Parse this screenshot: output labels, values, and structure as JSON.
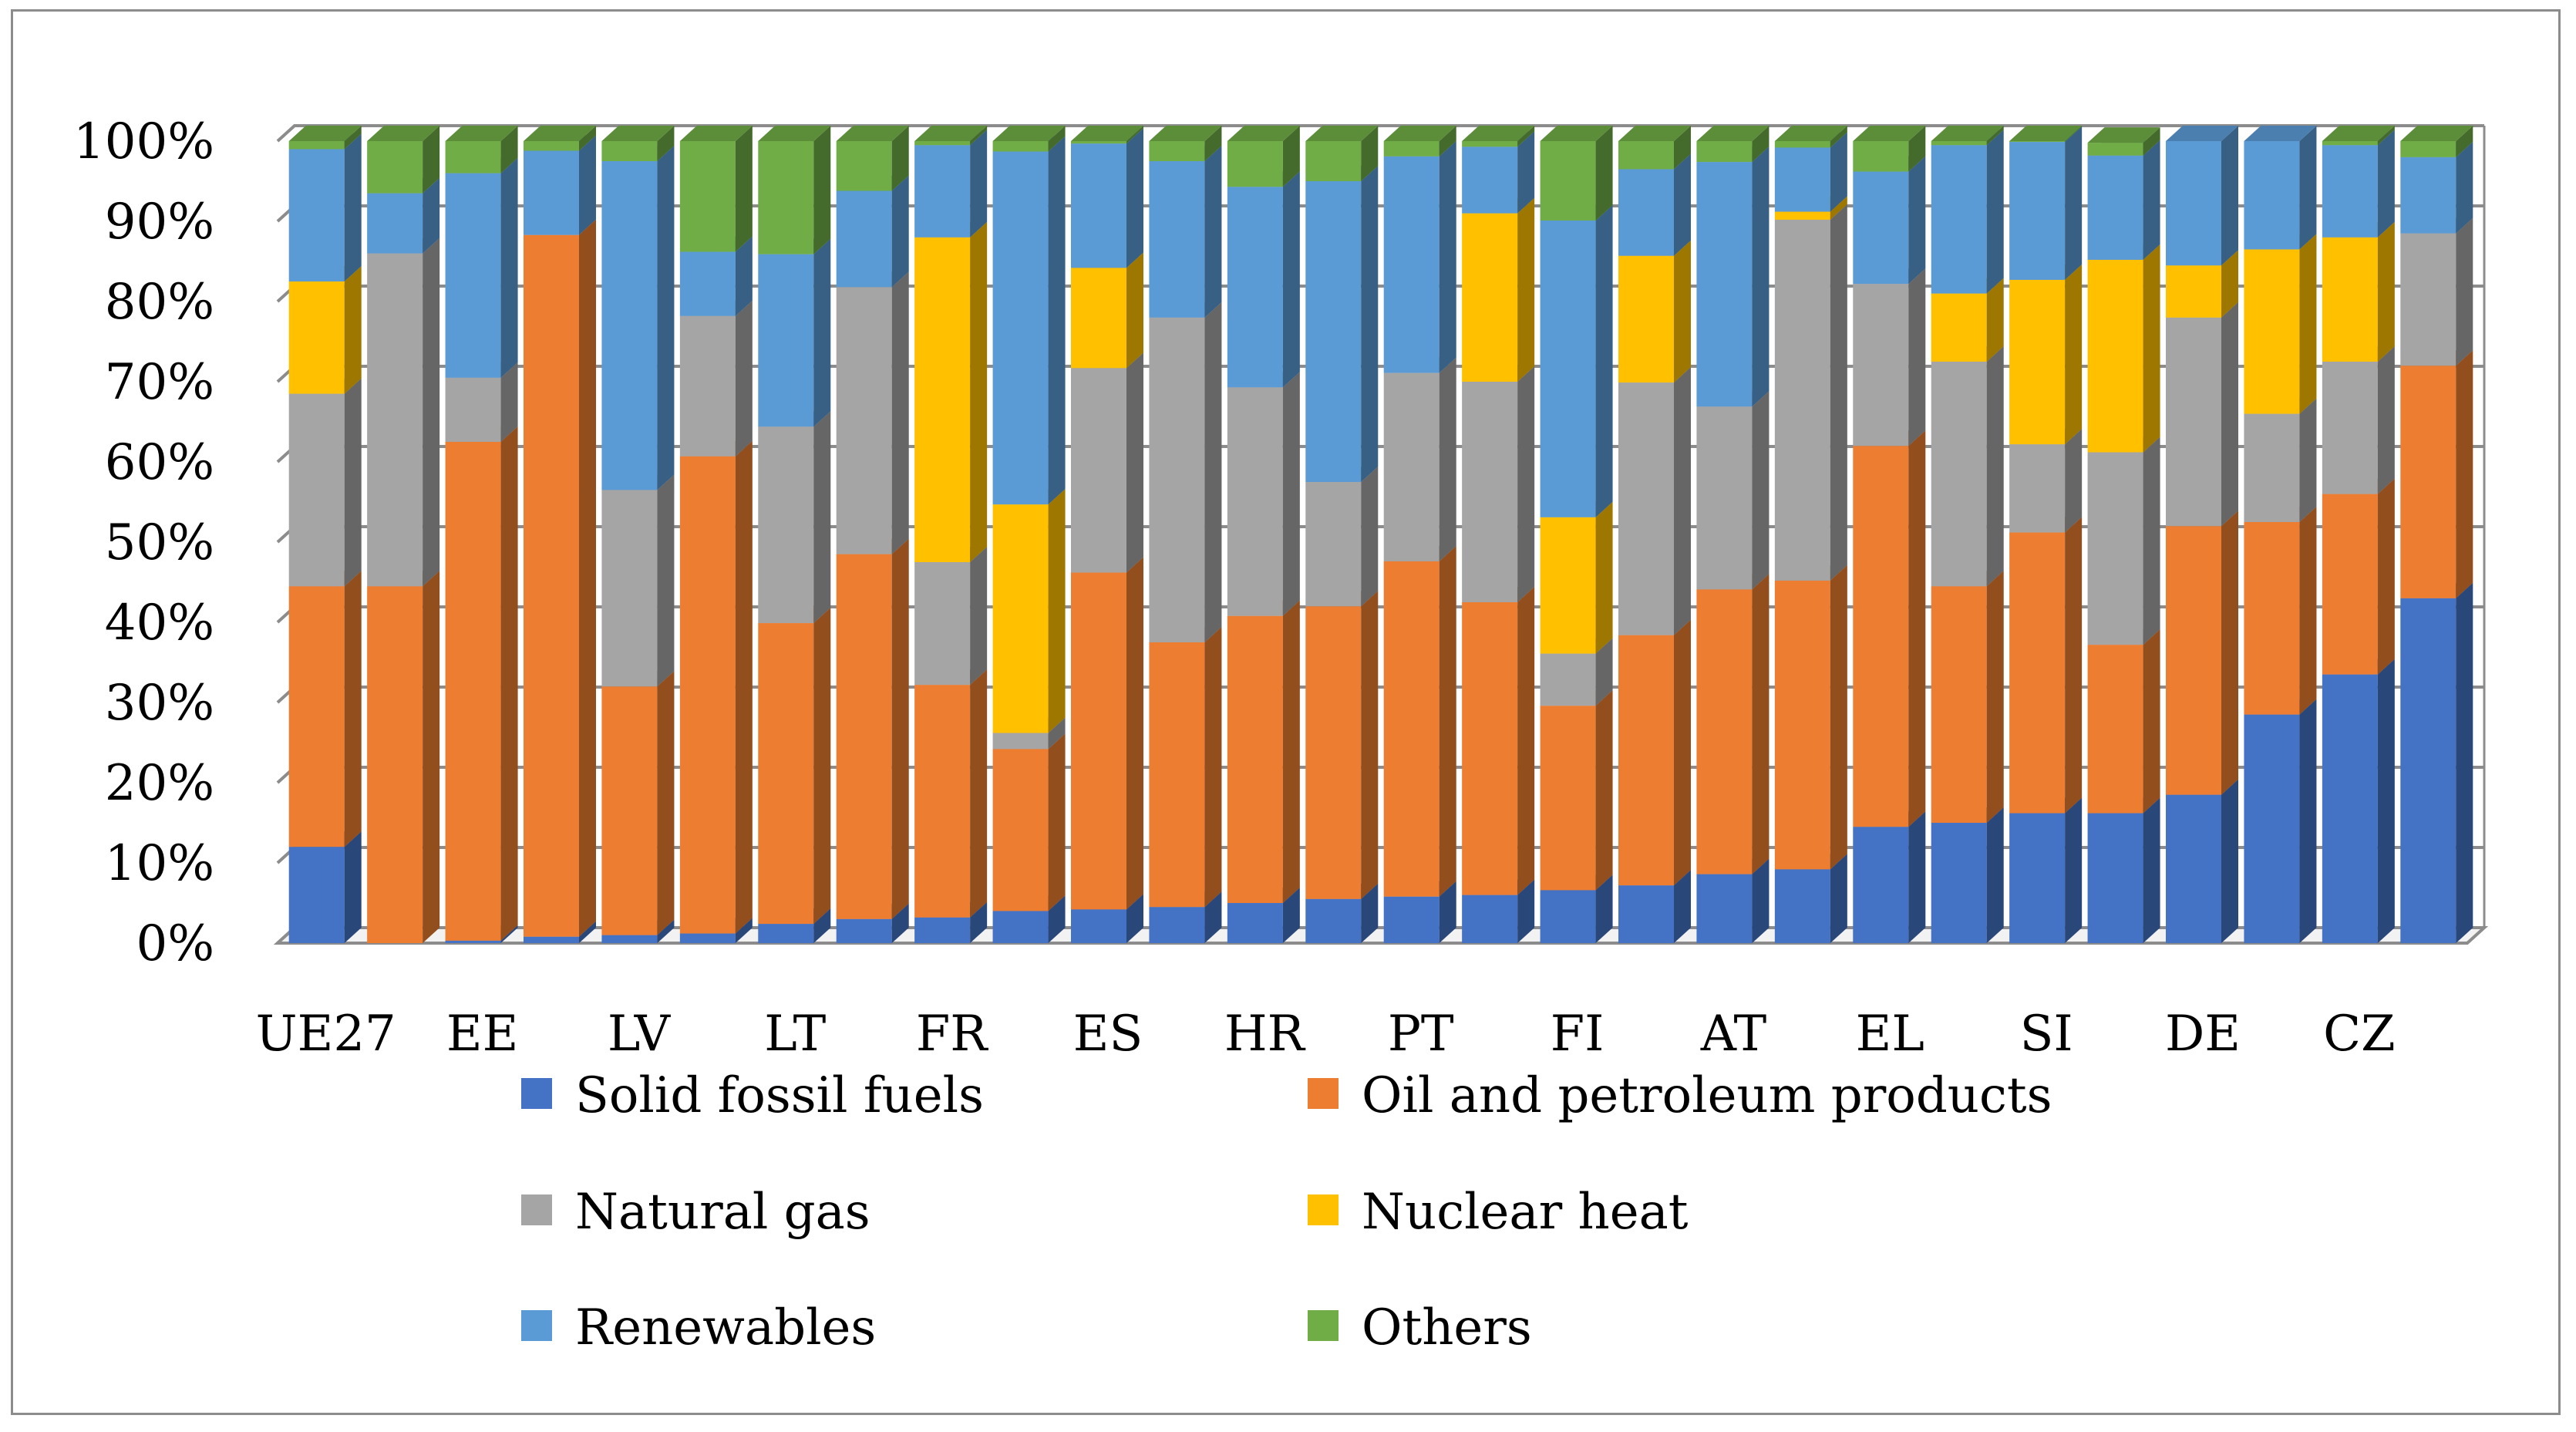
{
  "chart_data": {
    "type": "bar",
    "stacked": true,
    "style": "3d",
    "title": "",
    "xlabel": "",
    "ylabel": "",
    "ylim": [
      0,
      100
    ],
    "y_ticks": [
      "0%",
      "10%",
      "20%",
      "30%",
      "40%",
      "50%",
      "60%",
      "70%",
      "80%",
      "90%",
      "100%"
    ],
    "grid": true,
    "legend_position": "bottom",
    "categories": [
      "UE27",
      "",
      "EE",
      "",
      "LV",
      "",
      "LT",
      "",
      "FR",
      "",
      "ES",
      "",
      "HR",
      "",
      "PT",
      "",
      "FI",
      "",
      "AT",
      "",
      "EL",
      "",
      "SI",
      "",
      "DE",
      "",
      "CZ",
      ""
    ],
    "series": [
      {
        "name": "Solid fossil fuels",
        "color": "#4472c4",
        "values": [
          12,
          0,
          0.3,
          0.8,
          1,
          1.2,
          2.4,
          3,
          3.2,
          4,
          4.2,
          4.5,
          5,
          5.5,
          5.8,
          6,
          6.6,
          7.2,
          8.6,
          9.2,
          14.5,
          15,
          16.2,
          16.2,
          18.5,
          28.5,
          33.5,
          43
        ]
      },
      {
        "name": "Oil and petroleum products",
        "color": "#ed7d31",
        "values": [
          32.5,
          44.5,
          62.2,
          87.5,
          31,
          59.5,
          37.5,
          45.5,
          29,
          20.2,
          42,
          33,
          35.8,
          36.5,
          41.8,
          36.5,
          23,
          31.2,
          35.5,
          36,
          47.5,
          29.5,
          35,
          21,
          33.5,
          24,
          22.5,
          29
        ]
      },
      {
        "name": "Natural gas",
        "color": "#a5a5a5",
        "values": [
          24,
          41.5,
          8,
          0,
          24.5,
          17.5,
          24.5,
          33.3,
          15.3,
          2,
          25.5,
          40.5,
          28.5,
          15.5,
          23.5,
          27.5,
          6.5,
          31.5,
          22.8,
          45,
          20.2,
          28,
          11,
          24,
          26,
          13.5,
          16.5,
          16.5
        ]
      },
      {
        "name": "Nuclear heat",
        "color": "#ffc000",
        "values": [
          14,
          0,
          0,
          0,
          0,
          0,
          0,
          0,
          40.5,
          28.5,
          12.5,
          0,
          0,
          0,
          0,
          21,
          17,
          15.8,
          0,
          1,
          0,
          8.5,
          20.5,
          24,
          6.5,
          20.5,
          15.5,
          0
        ]
      },
      {
        "name": "Renewables",
        "color": "#5b9bd5",
        "values": [
          16.5,
          7.5,
          25.5,
          10.5,
          41,
          8,
          21.5,
          12,
          11.5,
          44,
          15.5,
          19.5,
          25,
          37.5,
          27,
          8.3,
          37,
          10.8,
          30.5,
          8,
          14,
          18.5,
          17.2,
          13,
          15.5,
          13.5,
          11.5,
          9.5
        ]
      },
      {
        "name": "Others",
        "color": "#70ad47",
        "values": [
          1,
          6.5,
          4,
          1.2,
          2.5,
          13.8,
          14.1,
          6.2,
          0.5,
          1.3,
          0.3,
          2.5,
          5.7,
          5,
          1.9,
          0.7,
          9.9,
          3.5,
          2.6,
          0.8,
          3.8,
          0.5,
          0.1,
          1.6,
          0,
          0,
          0.5,
          2
        ]
      }
    ]
  }
}
